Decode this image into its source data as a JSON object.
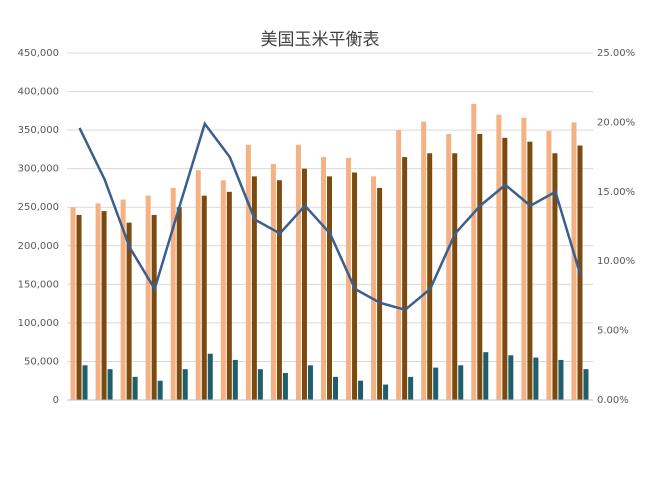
{
  "chart_data": {
    "type": "bar",
    "title": "美国玉米平衡表",
    "categories": [
      null,
      null,
      null,
      null,
      null,
      null,
      null,
      null,
      null,
      null,
      null,
      null,
      null,
      null,
      null,
      null,
      null,
      null,
      null,
      null,
      null
    ],
    "series": [
      {
        "color": "#f4b183",
        "values": [
          250000,
          255000,
          260000,
          265000,
          275000,
          298000,
          285000,
          331000,
          306000,
          331000,
          315000,
          314000,
          290000,
          350000,
          361000,
          345000,
          384000,
          370000,
          366000,
          349000,
          360000
        ]
      },
      {
        "color": "#7a4a0f",
        "values": [
          240000,
          245000,
          230000,
          240000,
          250000,
          265000,
          270000,
          290000,
          285000,
          300000,
          290000,
          295000,
          275000,
          315000,
          320000,
          320000,
          345000,
          340000,
          335000,
          320000,
          330000
        ]
      },
      {
        "color": "#1f5f6b",
        "values": [
          45000,
          40000,
          30000,
          25000,
          40000,
          60000,
          52000,
          40000,
          35000,
          45000,
          30000,
          25000,
          20000,
          30000,
          42000,
          45000,
          62000,
          58000,
          55000,
          52000,
          40000
        ]
      },
      {
        "color": "#3a5f8f",
        "type": "line",
        "axis": "y2",
        "values": [
          19.6,
          15.9,
          11,
          8,
          14,
          19.9,
          17.5,
          13,
          12,
          14,
          12,
          8,
          7,
          6.5,
          8,
          12,
          14,
          15.5,
          14,
          15,
          9
        ]
      }
    ],
    "ylim": [
      0,
      450000
    ],
    "yticks": [
      {
        "value": 0,
        "label": "0"
      },
      {
        "value": 50000,
        "label": "50,000"
      },
      {
        "value": 100000,
        "label": "100,000"
      },
      {
        "value": 150000,
        "label": "150,000"
      },
      {
        "value": 200000,
        "label": "200,000"
      },
      {
        "value": 250000,
        "label": "250,000"
      },
      {
        "value": 300000,
        "label": "300,000"
      },
      {
        "value": 350000,
        "label": "350,000"
      },
      {
        "value": 400000,
        "label": "400,000"
      },
      {
        "value": 450000,
        "label": "450,000"
      }
    ],
    "y2lim": [
      0,
      25
    ],
    "y2ticks": [
      {
        "value": 0,
        "label": "0.00%"
      },
      {
        "value": 5,
        "label": "5.00%"
      },
      {
        "value": 10,
        "label": "10.00%"
      },
      {
        "value": 15,
        "label": "15.00%"
      },
      {
        "value": 20,
        "label": "20.00%"
      },
      {
        "value": 25,
        "label": "25.00%"
      }
    ],
    "grid": true
  }
}
